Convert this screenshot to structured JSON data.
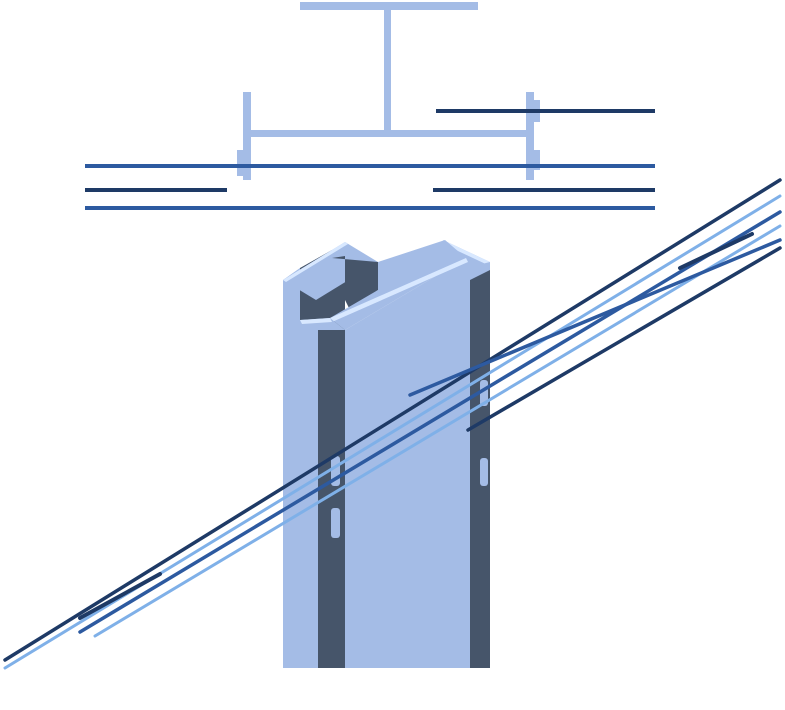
{
  "figure": {
    "kind": "structural-steel-illustration",
    "views": [
      "plan-section",
      "column-isometric"
    ]
  },
  "colors": {
    "background": "#ffffff",
    "steel_face": "#a4bce6",
    "steel_shadow": "#46556a",
    "steel_highlight": "#d8e8ff",
    "rebar_dark": "#1e3a66",
    "rebar_mid": "#2d5aa0",
    "rebar_light": "#7fb0e8"
  }
}
